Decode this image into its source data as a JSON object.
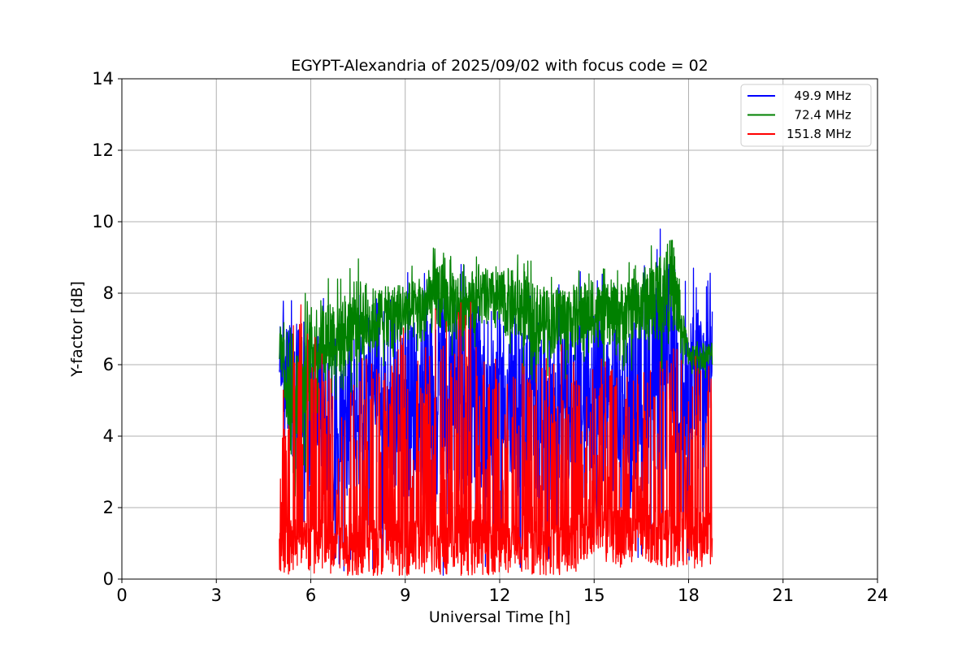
{
  "chart_data": {
    "type": "line",
    "title": "EGYPT-Alexandria of 2025/09/02 with focus code = 02",
    "xlabel": "Universal Time [h]",
    "ylabel": "Y-factor [dB]",
    "xlim": [
      0,
      24
    ],
    "ylim": [
      0,
      14
    ],
    "xticks": [
      0,
      3,
      6,
      9,
      12,
      15,
      18,
      21,
      24
    ],
    "yticks": [
      0,
      2,
      4,
      6,
      8,
      10,
      12,
      14
    ],
    "grid": true,
    "legend_position": "top-right",
    "series": [
      {
        "name": "  49.9 MHz",
        "color": "#0000ff",
        "x": [
          5.0,
          5.1,
          5.5,
          6.0,
          6.3,
          6.6,
          7.0,
          7.5,
          8.0,
          8.2,
          8.5,
          9.0,
          9.5,
          10.0,
          10.5,
          11.0,
          11.5,
          12.0,
          12.5,
          13.0,
          13.5,
          14.0,
          14.5,
          15.0,
          15.5,
          16.0,
          16.5,
          17.0,
          17.5,
          17.8,
          18.0,
          18.3,
          18.5,
          18.75
        ],
        "min": [
          4.2,
          4.3,
          0.2,
          0.2,
          0.1,
          0.1,
          0.2,
          0.1,
          0.1,
          0.1,
          0.1,
          0.0,
          0.1,
          0.1,
          0.1,
          0.1,
          0.1,
          0.1,
          0.1,
          0.1,
          0.1,
          0.2,
          0.3,
          0.7,
          0.4,
          0.3,
          0.4,
          0.4,
          0.3,
          0.3,
          0.4,
          0.4,
          0.3,
          4.3
        ],
        "max": [
          7.5,
          7.9,
          8.2,
          8.4,
          8.0,
          7.9,
          8.0,
          8.2,
          8.8,
          9.35,
          8.4,
          8.6,
          8.5,
          9.0,
          9.0,
          9.25,
          8.8,
          8.8,
          8.6,
          8.4,
          8.6,
          8.4,
          8.7,
          9.0,
          8.3,
          8.4,
          9.0,
          9.6,
          10.8,
          8.5,
          8.3,
          9.6,
          9.3,
          9.75
        ]
      },
      {
        "name": "  72.4 MHz",
        "color": "#008000",
        "x": [
          5.0,
          5.1,
          5.5,
          6.0,
          6.3,
          6.6,
          7.0,
          7.5,
          8.0,
          8.5,
          9.0,
          9.5,
          10.0,
          10.5,
          11.0,
          11.5,
          12.0,
          12.5,
          13.0,
          13.5,
          14.0,
          14.5,
          15.0,
          15.5,
          16.0,
          16.5,
          17.0,
          17.5,
          17.8,
          18.0,
          18.3,
          18.5,
          18.75
        ],
        "min": [
          4.7,
          4.9,
          0.0,
          4.3,
          4.6,
          4.6,
          4.8,
          5.3,
          5.6,
          5.9,
          5.9,
          6.0,
          6.1,
          6.1,
          6.3,
          6.4,
          6.3,
          5.8,
          5.5,
          5.5,
          5.5,
          5.8,
          5.9,
          5.8,
          5.8,
          5.8,
          5.7,
          5.8,
          5.8,
          5.7,
          5.6,
          5.6,
          5.8
        ],
        "max": [
          7.5,
          7.8,
          8.1,
          8.2,
          8.4,
          8.6,
          8.5,
          9.0,
          8.6,
          8.6,
          8.8,
          8.8,
          9.45,
          9.0,
          9.1,
          9.1,
          9.0,
          9.2,
          8.9,
          8.6,
          8.7,
          8.7,
          8.7,
          8.7,
          8.8,
          9.2,
          9.6,
          10.3,
          7.9,
          6.8,
          6.7,
          6.7,
          6.7
        ]
      },
      {
        "name": "151.8 MHz",
        "color": "#ff0000",
        "x": [
          5.0,
          5.1,
          5.5,
          6.0,
          6.3,
          6.6,
          7.0,
          7.5,
          8.0,
          8.5,
          9.0,
          9.5,
          10.0,
          10.5,
          11.0,
          11.5,
          12.0,
          12.5,
          13.0,
          13.5,
          14.0,
          14.5,
          15.0,
          15.5,
          16.0,
          16.5,
          17.0,
          17.5,
          18.0,
          18.3,
          18.5,
          18.75
        ],
        "min": [
          0.2,
          0.1,
          0.1,
          0.1,
          0.1,
          0.1,
          0.1,
          0.1,
          0.1,
          0.1,
          0.1,
          0.1,
          0.1,
          0.1,
          0.1,
          0.1,
          0.1,
          0.1,
          0.1,
          0.1,
          0.1,
          0.2,
          0.7,
          0.4,
          0.3,
          0.4,
          0.4,
          0.3,
          0.3,
          0.3,
          0.3,
          0.3
        ],
        "max": [
          2.2,
          6.0,
          8.25,
          8.2,
          7.3,
          6.9,
          6.8,
          6.5,
          6.3,
          6.2,
          7.2,
          6.0,
          8.35,
          7.2,
          8.35,
          6.8,
          6.5,
          6.0,
          6.6,
          6.6,
          7.2,
          6.0,
          6.2,
          6.2,
          6.5,
          5.8,
          6.0,
          6.9,
          6.0,
          6.4,
          6.4,
          6.5
        ]
      }
    ]
  }
}
